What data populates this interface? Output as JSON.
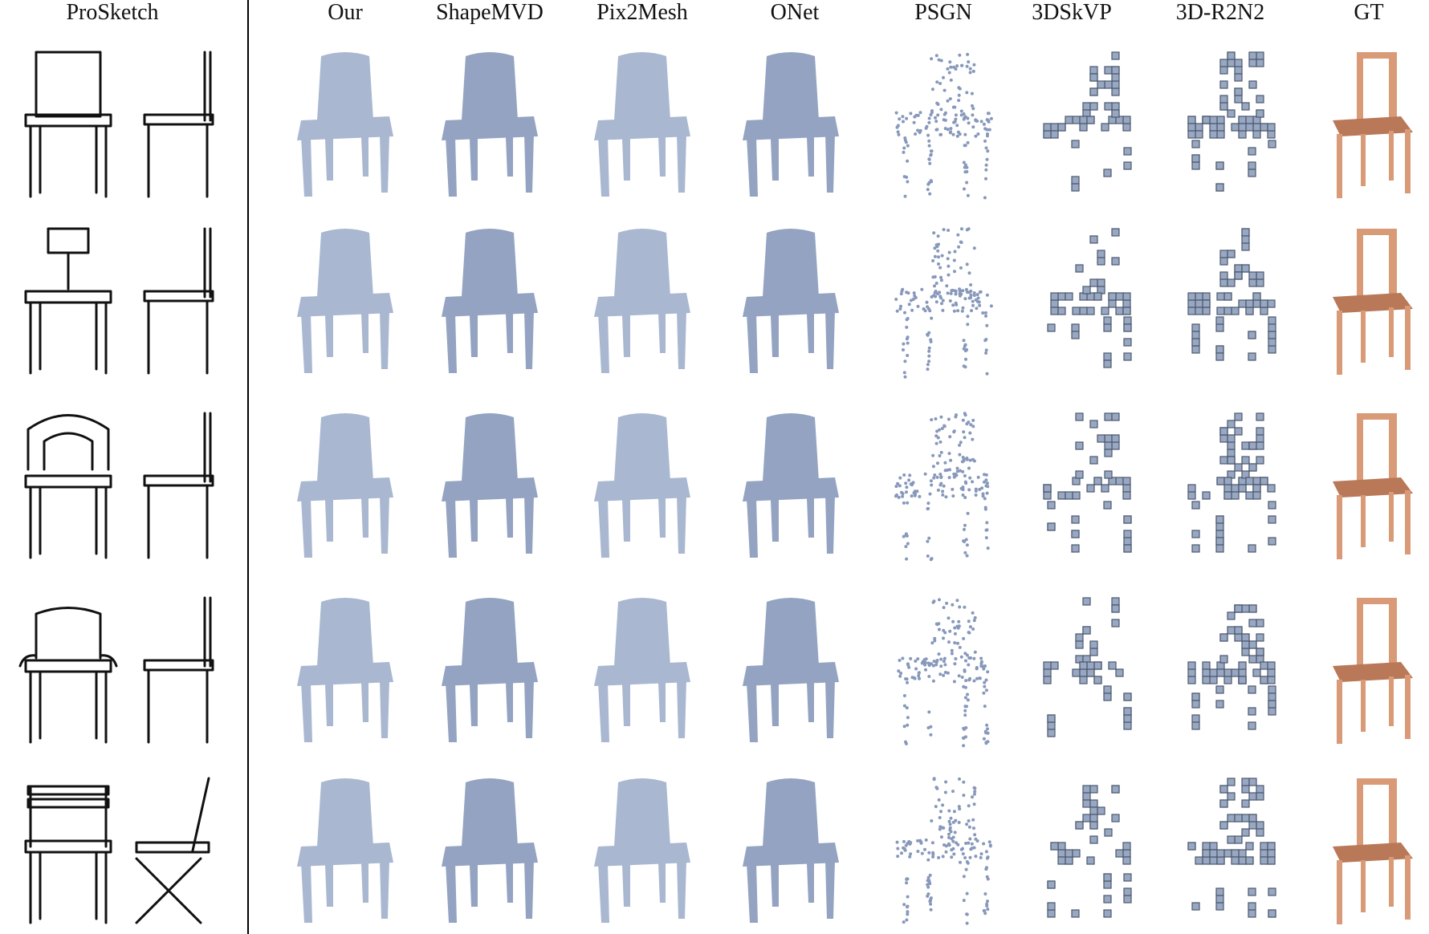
{
  "headers": {
    "sketch": "ProSketch",
    "methods": [
      "Our",
      "ShapeMVD",
      "Pix2Mesh",
      "ONet",
      "PSGN",
      "3DSkVP",
      "3D-R2N2",
      "GT"
    ]
  },
  "colors": {
    "prediction": "#a9b7d0",
    "ground_truth": "#d99a77",
    "sketch_stroke": "#111111"
  }
}
